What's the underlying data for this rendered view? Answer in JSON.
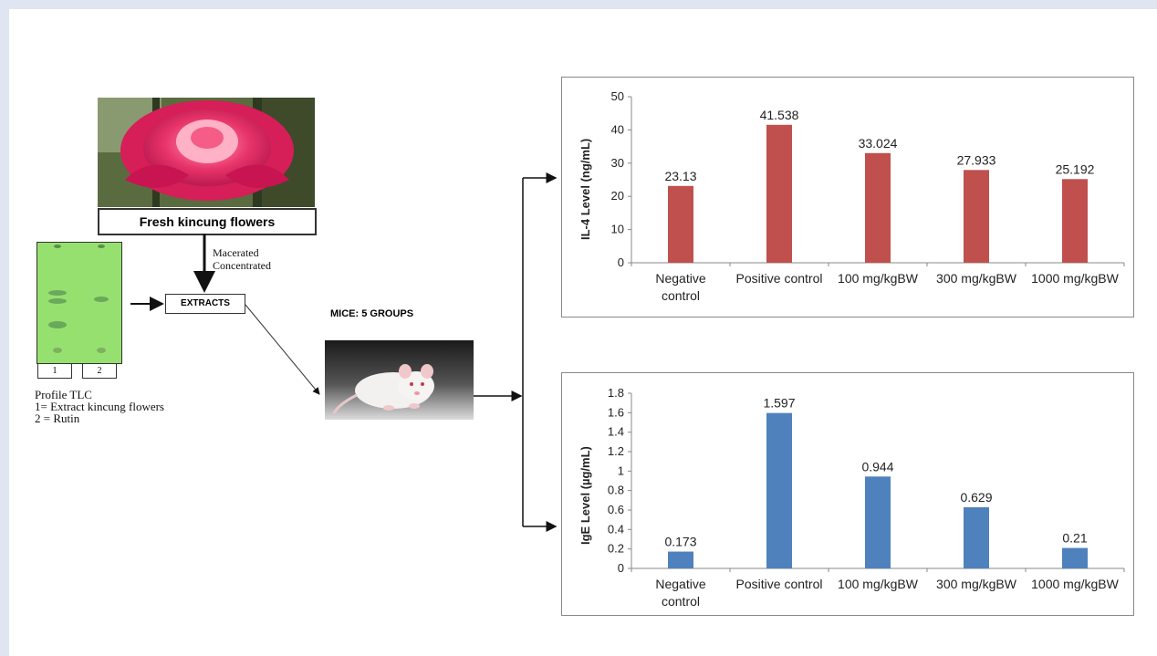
{
  "flowchart": {
    "flower_label": "Fresh kincung flowers",
    "process_line1": "Macerated",
    "process_line2": "Concentrated",
    "extracts_label": "EXTRACTS",
    "mice_label": "MICE: 5 GROUPS",
    "tlc_lane1": "1",
    "tlc_lane2": "2",
    "tlc_caption_line1": "Profile TLC",
    "tlc_caption_line2": "1= Extract kincung flowers",
    "tlc_caption_line3": "2 = Rutin"
  },
  "colors": {
    "il4_bar": "#c0504d",
    "ige_bar": "#4f81bd"
  },
  "chart_data": [
    {
      "type": "bar",
      "categories": [
        "Negative control",
        "Positive control",
        "100 mg/kgBW",
        "300 mg/kgBW",
        "1000 mg/kgBW"
      ],
      "category_lines": [
        [
          "Negative",
          "control"
        ],
        [
          "Positive control"
        ],
        [
          "100 mg/kgBW"
        ],
        [
          "300 mg/kgBW"
        ],
        [
          "1000 mg/kgBW"
        ]
      ],
      "values": [
        23.13,
        41.538,
        33.024,
        27.933,
        25.192
      ],
      "data_labels": [
        "23.13",
        "41.538",
        "33.024",
        "27.933",
        "25.192"
      ],
      "ylabel": "IL-4 Level (ng/mL)",
      "ylim": [
        0,
        50
      ],
      "yticks": [
        0,
        10,
        20,
        30,
        40,
        50
      ],
      "ytick_labels": [
        "0",
        "10",
        "20",
        "30",
        "40",
        "50"
      ],
      "grid": false
    },
    {
      "type": "bar",
      "categories": [
        "Negative control",
        "Positive control",
        "100 mg/kgBW",
        "300 mg/kgBW",
        "1000 mg/kgBW"
      ],
      "category_lines": [
        [
          "Negative",
          "control"
        ],
        [
          "Positive control"
        ],
        [
          "100 mg/kgBW"
        ],
        [
          "300 mg/kgBW"
        ],
        [
          "1000 mg/kgBW"
        ]
      ],
      "values": [
        0.173,
        1.597,
        0.944,
        0.629,
        0.21
      ],
      "data_labels": [
        "0.173",
        "1.597",
        "0.944",
        "0.629",
        "0.21"
      ],
      "ylabel": "IgE Level (µg/mL)",
      "ylim": [
        0,
        1.8
      ],
      "yticks": [
        0,
        0.2,
        0.4,
        0.6,
        0.8,
        1.0,
        1.2,
        1.4,
        1.6,
        1.8
      ],
      "ytick_labels": [
        "0",
        "0.2",
        "0.4",
        "0.6",
        "0.8",
        "1",
        "1.2",
        "1.4",
        "1.6",
        "1.8"
      ],
      "grid": false
    }
  ]
}
